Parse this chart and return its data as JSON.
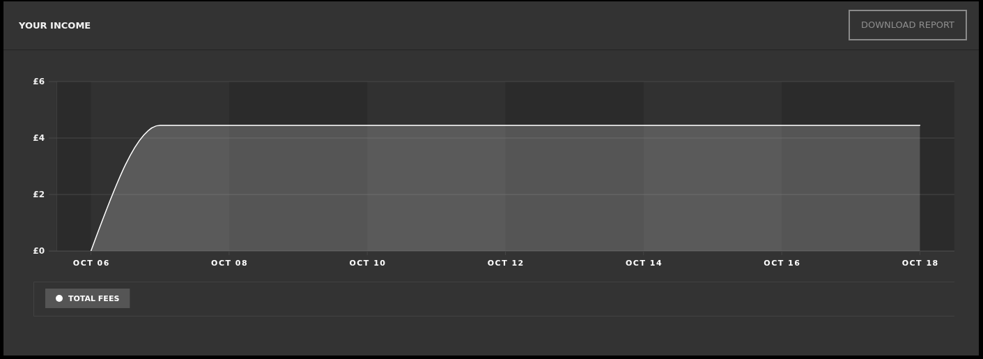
{
  "chart_data": {
    "type": "area",
    "title": "YOUR INCOME",
    "x": [
      "--10-06",
      "--10-07",
      "--10-08",
      "--10-09",
      "--10-10",
      "--10-11",
      "--10-12",
      "--10-13",
      "--10-14",
      "--10-15",
      "--10-16",
      "--10-17",
      "--10-18"
    ],
    "series": [
      {
        "name": "TOTAL FEES",
        "color": "#ffffff",
        "values": [
          0,
          4.45,
          4.45,
          4.45,
          4.45,
          4.45,
          4.45,
          4.45,
          4.45,
          4.45,
          4.45,
          4.45,
          4.45
        ]
      }
    ],
    "xlim": [
      "--10-05T12:00",
      "--10-18T12:00"
    ],
    "xticks": [
      {
        "value": "--10-06",
        "label": "OCT 06"
      },
      {
        "value": "--10-08",
        "label": "OCT 08"
      },
      {
        "value": "--10-10",
        "label": "OCT 10"
      },
      {
        "value": "--10-12",
        "label": "OCT 12"
      },
      {
        "value": "--10-14",
        "label": "OCT 14"
      },
      {
        "value": "--10-16",
        "label": "OCT 16"
      },
      {
        "value": "--10-18",
        "label": "OCT 18"
      }
    ],
    "ylim": [
      0,
      6
    ],
    "yticks": [
      {
        "value": 0,
        "label": "£0"
      },
      {
        "value": 2,
        "label": "£2"
      },
      {
        "value": 4,
        "label": "£4"
      },
      {
        "value": 6,
        "label": "£6"
      }
    ],
    "grid": "y",
    "legend": "bottom left",
    "bands": [
      {
        "axis": "x",
        "from": "--10-05T12:00",
        "to": "--10-06",
        "color": "#2b2b2b"
      },
      {
        "axis": "x",
        "from": "--10-08",
        "to": "--10-10",
        "color": "#2b2b2b"
      },
      {
        "axis": "x",
        "from": "--10-12",
        "to": "--10-14",
        "color": "#2b2b2b"
      },
      {
        "axis": "x",
        "from": "--10-16",
        "to": "--10-18T12:00",
        "color": "#2b2b2b"
      }
    ],
    "annotations": [
      "DOWNLOAD REPORT"
    ]
  }
}
